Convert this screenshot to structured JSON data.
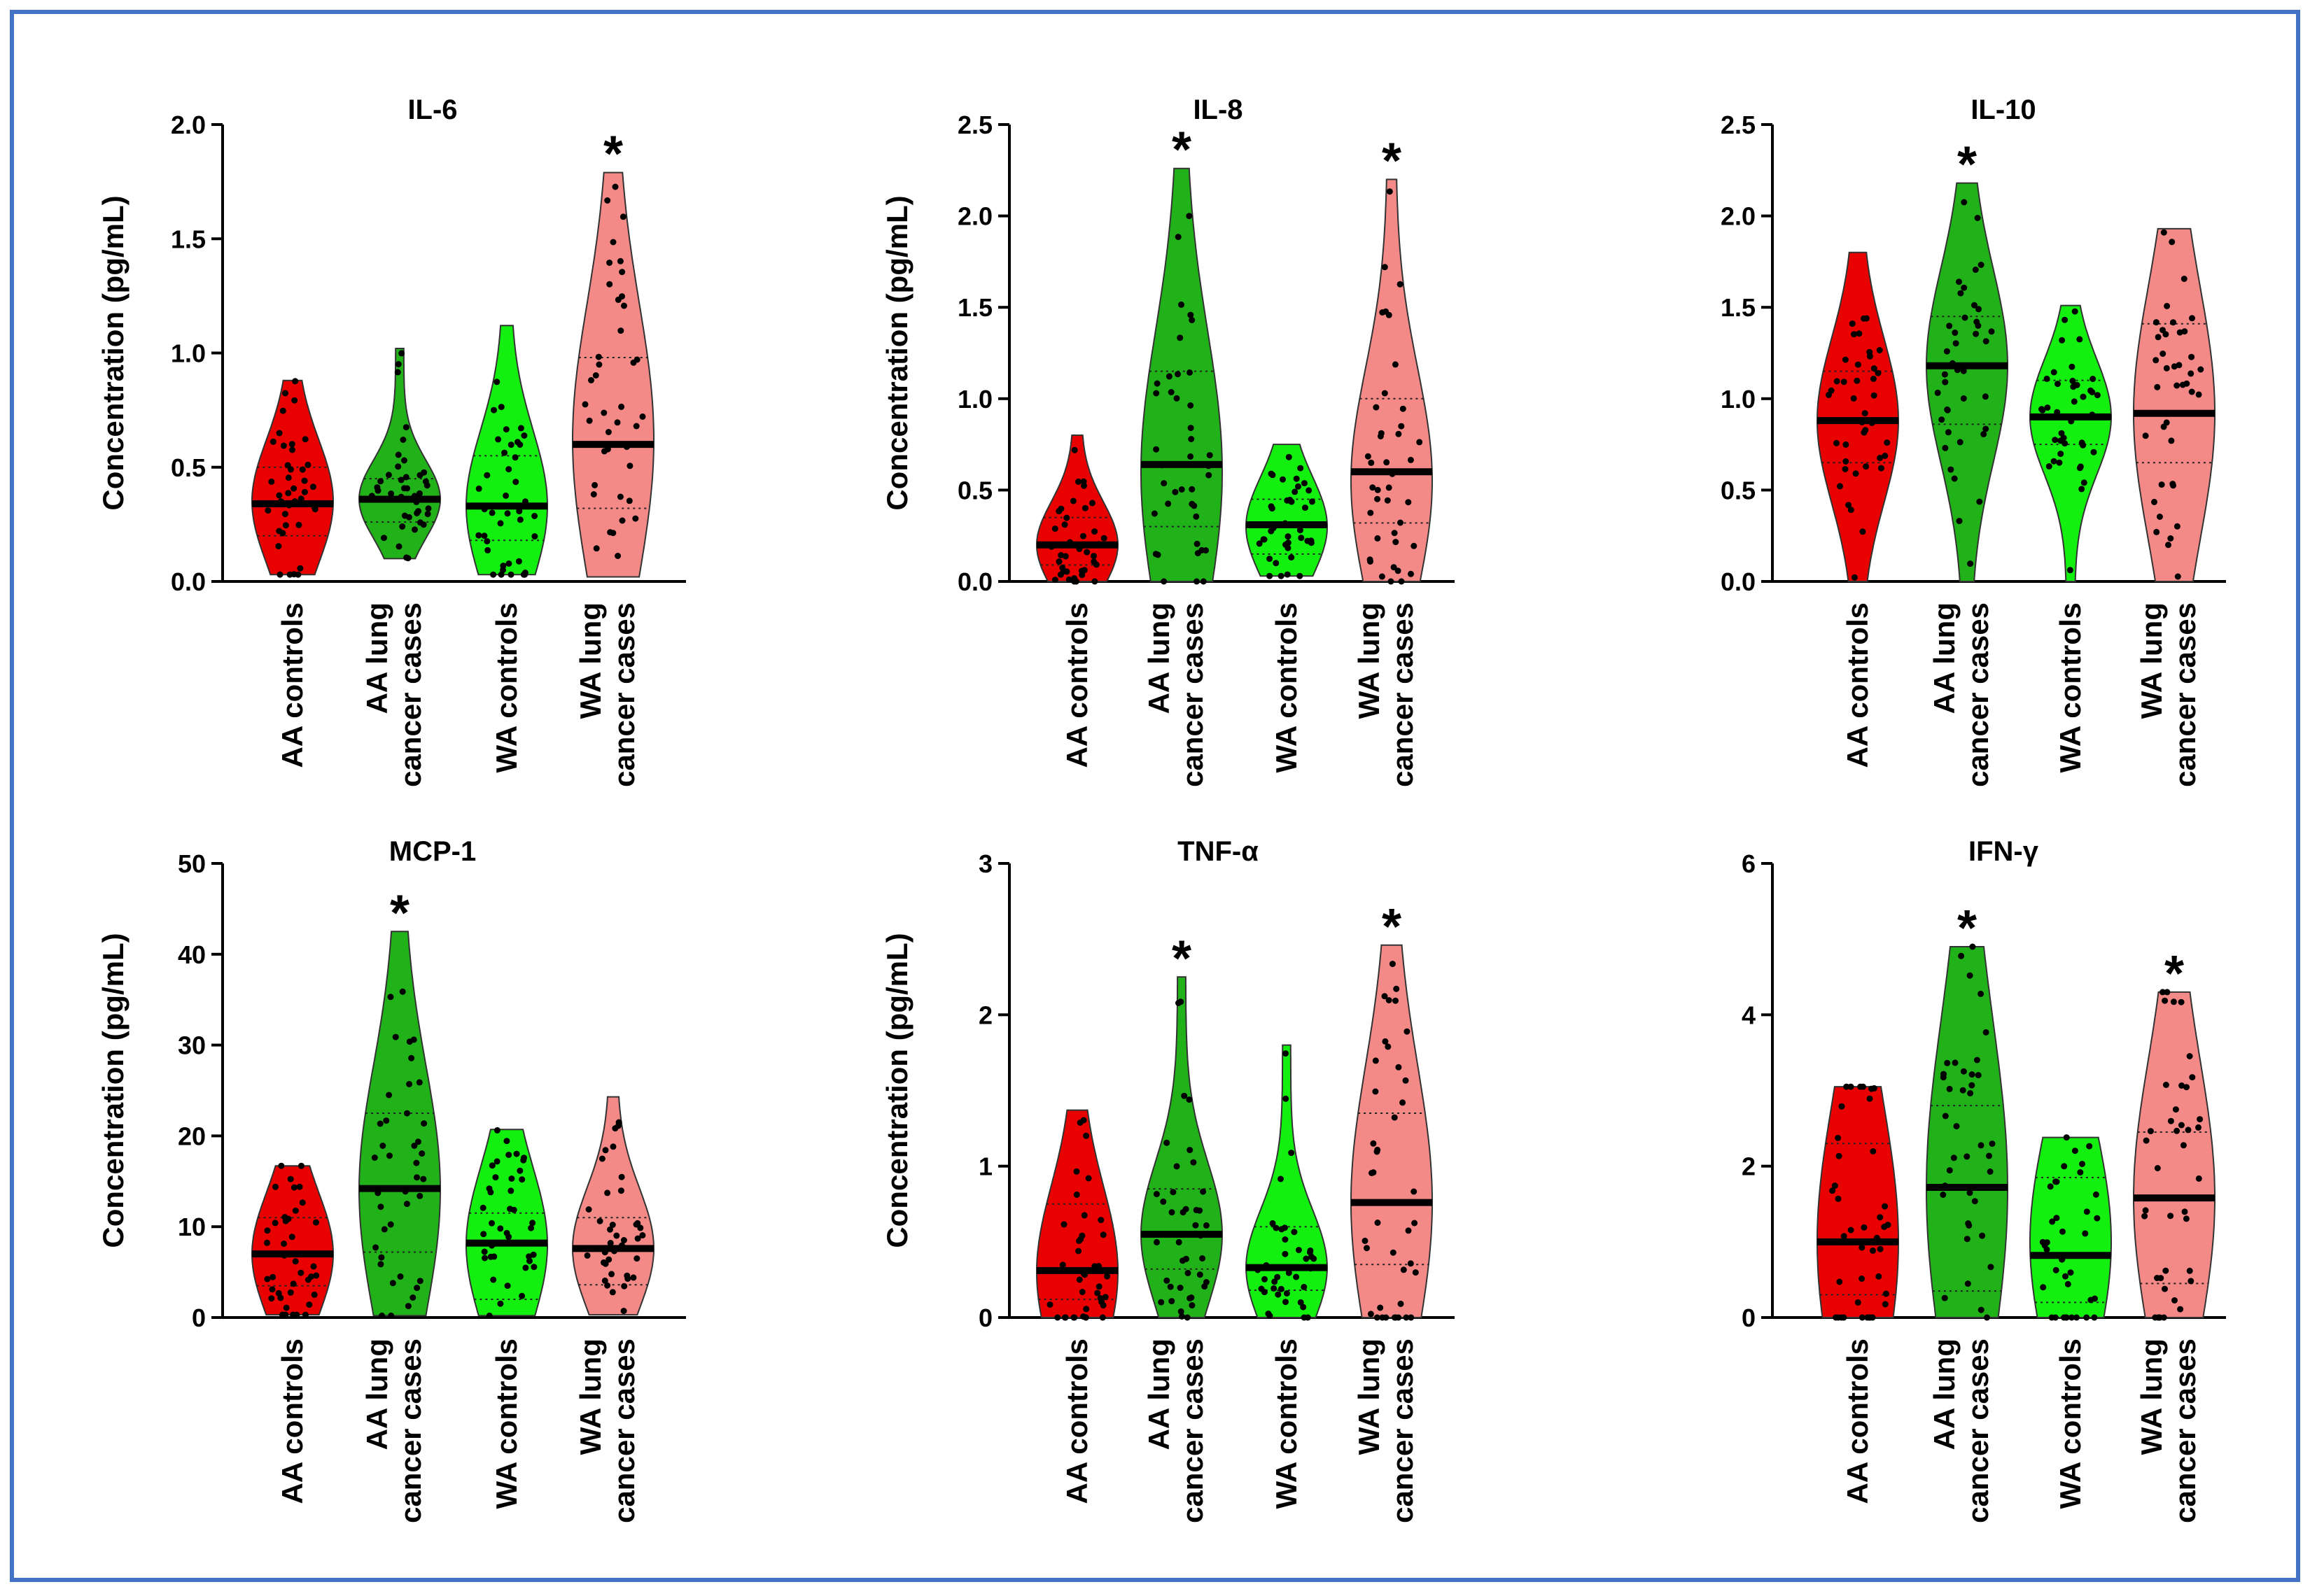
{
  "figure": {
    "frame_color": "#4472c4"
  },
  "group_labels": [
    {
      "line1": "AA controls",
      "line2": ""
    },
    {
      "line1": "AA lung",
      "line2": "cancer cases"
    },
    {
      "line1": "WA controls",
      "line2": ""
    },
    {
      "line1": "WA lung",
      "line2": "cancer cases"
    }
  ],
  "group_colors": [
    "#e90000",
    "#21b21a",
    "#13f010",
    "#f48a88"
  ],
  "chart_data": [
    {
      "type": "violin",
      "title": "IL-6",
      "ylabel": "Concentration (pg/mL)",
      "ylim": [
        0,
        2.0
      ],
      "yticks": [
        {
          "v": 0.0,
          "label": "0.0"
        },
        {
          "v": 0.5,
          "label": "0.5"
        },
        {
          "v": 1.0,
          "label": "1.0"
        },
        {
          "v": 1.5,
          "label": "1.5"
        },
        {
          "v": 2.0,
          "label": "2.0"
        }
      ],
      "groups": [
        {
          "min": 0.03,
          "max": 0.88,
          "median": 0.34,
          "q1": 0.2,
          "q3": 0.5,
          "peak": 0.35,
          "star": false
        },
        {
          "min": 0.1,
          "max": 1.02,
          "median": 0.36,
          "q1": 0.26,
          "q3": 0.45,
          "peak": 0.36,
          "star": false
        },
        {
          "min": 0.03,
          "max": 1.12,
          "median": 0.33,
          "q1": 0.18,
          "q3": 0.55,
          "peak": 0.33,
          "star": false
        },
        {
          "min": 0.02,
          "max": 1.79,
          "median": 0.6,
          "q1": 0.32,
          "q3": 0.98,
          "peak": 0.62,
          "star": true
        }
      ]
    },
    {
      "type": "violin",
      "title": "IL-8",
      "ylabel": "Concentration (pg/mL)",
      "ylim": [
        0,
        2.5
      ],
      "yticks": [
        {
          "v": 0.0,
          "label": "0.0"
        },
        {
          "v": 0.5,
          "label": "0.5"
        },
        {
          "v": 1.0,
          "label": "1.0"
        },
        {
          "v": 1.5,
          "label": "1.5"
        },
        {
          "v": 2.0,
          "label": "2.0"
        },
        {
          "v": 2.5,
          "label": "2.5"
        }
      ],
      "groups": [
        {
          "min": 0.0,
          "max": 0.8,
          "median": 0.2,
          "q1": 0.09,
          "q3": 0.35,
          "peak": 0.2,
          "star": false
        },
        {
          "min": 0.0,
          "max": 2.26,
          "median": 0.64,
          "q1": 0.3,
          "q3": 1.15,
          "peak": 0.6,
          "star": true
        },
        {
          "min": 0.03,
          "max": 0.75,
          "median": 0.31,
          "q1": 0.15,
          "q3": 0.45,
          "peak": 0.3,
          "star": false
        },
        {
          "min": 0.0,
          "max": 2.2,
          "median": 0.6,
          "q1": 0.32,
          "q3": 1.0,
          "peak": 0.55,
          "star": true
        }
      ]
    },
    {
      "type": "violin",
      "title": "IL-10",
      "ylabel": "",
      "ylim": [
        0,
        2.5
      ],
      "yticks": [
        {
          "v": 0.0,
          "label": "0.0"
        },
        {
          "v": 0.5,
          "label": "0.5"
        },
        {
          "v": 1.0,
          "label": "1.0"
        },
        {
          "v": 1.5,
          "label": "1.5"
        },
        {
          "v": 2.0,
          "label": "2.0"
        },
        {
          "v": 2.5,
          "label": "2.5"
        }
      ],
      "groups": [
        {
          "min": 0.0,
          "max": 1.8,
          "median": 0.88,
          "q1": 0.65,
          "q3": 1.15,
          "peak": 0.88,
          "star": false
        },
        {
          "min": 0.0,
          "max": 2.18,
          "median": 1.18,
          "q1": 0.86,
          "q3": 1.45,
          "peak": 1.18,
          "star": true
        },
        {
          "min": 0.0,
          "max": 1.51,
          "median": 0.9,
          "q1": 0.75,
          "q3": 1.1,
          "peak": 0.9,
          "star": false
        },
        {
          "min": 0.0,
          "max": 1.93,
          "median": 0.92,
          "q1": 0.65,
          "q3": 1.41,
          "peak": 0.92,
          "star": false
        }
      ]
    },
    {
      "type": "violin",
      "title": "MCP-1",
      "ylabel": "Concentration (pg/mL)",
      "ylim": [
        0,
        50
      ],
      "yticks": [
        {
          "v": 0,
          "label": "0"
        },
        {
          "v": 10,
          "label": "10"
        },
        {
          "v": 20,
          "label": "20"
        },
        {
          "v": 30,
          "label": "30"
        },
        {
          "v": 40,
          "label": "40"
        },
        {
          "v": 50,
          "label": "50"
        }
      ],
      "groups": [
        {
          "min": 0.3,
          "max": 16.7,
          "median": 7.0,
          "q1": 3.5,
          "q3": 11.0,
          "peak": 7.0,
          "star": false
        },
        {
          "min": 0.2,
          "max": 42.5,
          "median": 14.2,
          "q1": 7.2,
          "q3": 22.5,
          "peak": 14.0,
          "star": true
        },
        {
          "min": 0.2,
          "max": 20.7,
          "median": 8.2,
          "q1": 2.0,
          "q3": 11.5,
          "peak": 8.0,
          "star": false
        },
        {
          "min": 0.3,
          "max": 24.3,
          "median": 7.6,
          "q1": 3.6,
          "q3": 11.0,
          "peak": 7.6,
          "star": false
        }
      ]
    },
    {
      "type": "violin",
      "title": "TNF-α",
      "ylabel": "Concentration (pg/mL)",
      "ylim": [
        0,
        3
      ],
      "yticks": [
        {
          "v": 0,
          "label": "0"
        },
        {
          "v": 1,
          "label": "1"
        },
        {
          "v": 2,
          "label": "2"
        },
        {
          "v": 3,
          "label": "3"
        }
      ],
      "groups": [
        {
          "min": 0.0,
          "max": 1.37,
          "median": 0.31,
          "q1": 0.12,
          "q3": 0.75,
          "peak": 0.3,
          "star": false
        },
        {
          "min": 0.0,
          "max": 2.25,
          "median": 0.55,
          "q1": 0.32,
          "q3": 0.85,
          "peak": 0.55,
          "star": true
        },
        {
          "min": 0.0,
          "max": 1.8,
          "median": 0.33,
          "q1": 0.18,
          "q3": 0.6,
          "peak": 0.33,
          "star": false
        },
        {
          "min": 0.0,
          "max": 2.46,
          "median": 0.76,
          "q1": 0.35,
          "q3": 1.35,
          "peak": 0.76,
          "star": true
        }
      ]
    },
    {
      "type": "violin",
      "title": "IFN-γ",
      "ylabel": "",
      "ylim": [
        0,
        6
      ],
      "yticks": [
        {
          "v": 0,
          "label": "0"
        },
        {
          "v": 2,
          "label": "2"
        },
        {
          "v": 4,
          "label": "4"
        },
        {
          "v": 6,
          "label": "6"
        }
      ],
      "groups": [
        {
          "min": 0.0,
          "max": 3.05,
          "median": 1.0,
          "q1": 0.3,
          "q3": 2.3,
          "peak": 1.0,
          "star": false
        },
        {
          "min": 0.0,
          "max": 4.9,
          "median": 1.72,
          "q1": 0.35,
          "q3": 2.8,
          "peak": 1.7,
          "star": true
        },
        {
          "min": 0.0,
          "max": 2.38,
          "median": 0.82,
          "q1": 0.2,
          "q3": 1.85,
          "peak": 1.0,
          "star": false
        },
        {
          "min": 0.0,
          "max": 4.3,
          "median": 1.58,
          "q1": 0.45,
          "q3": 2.45,
          "peak": 1.58,
          "star": true
        }
      ]
    }
  ]
}
